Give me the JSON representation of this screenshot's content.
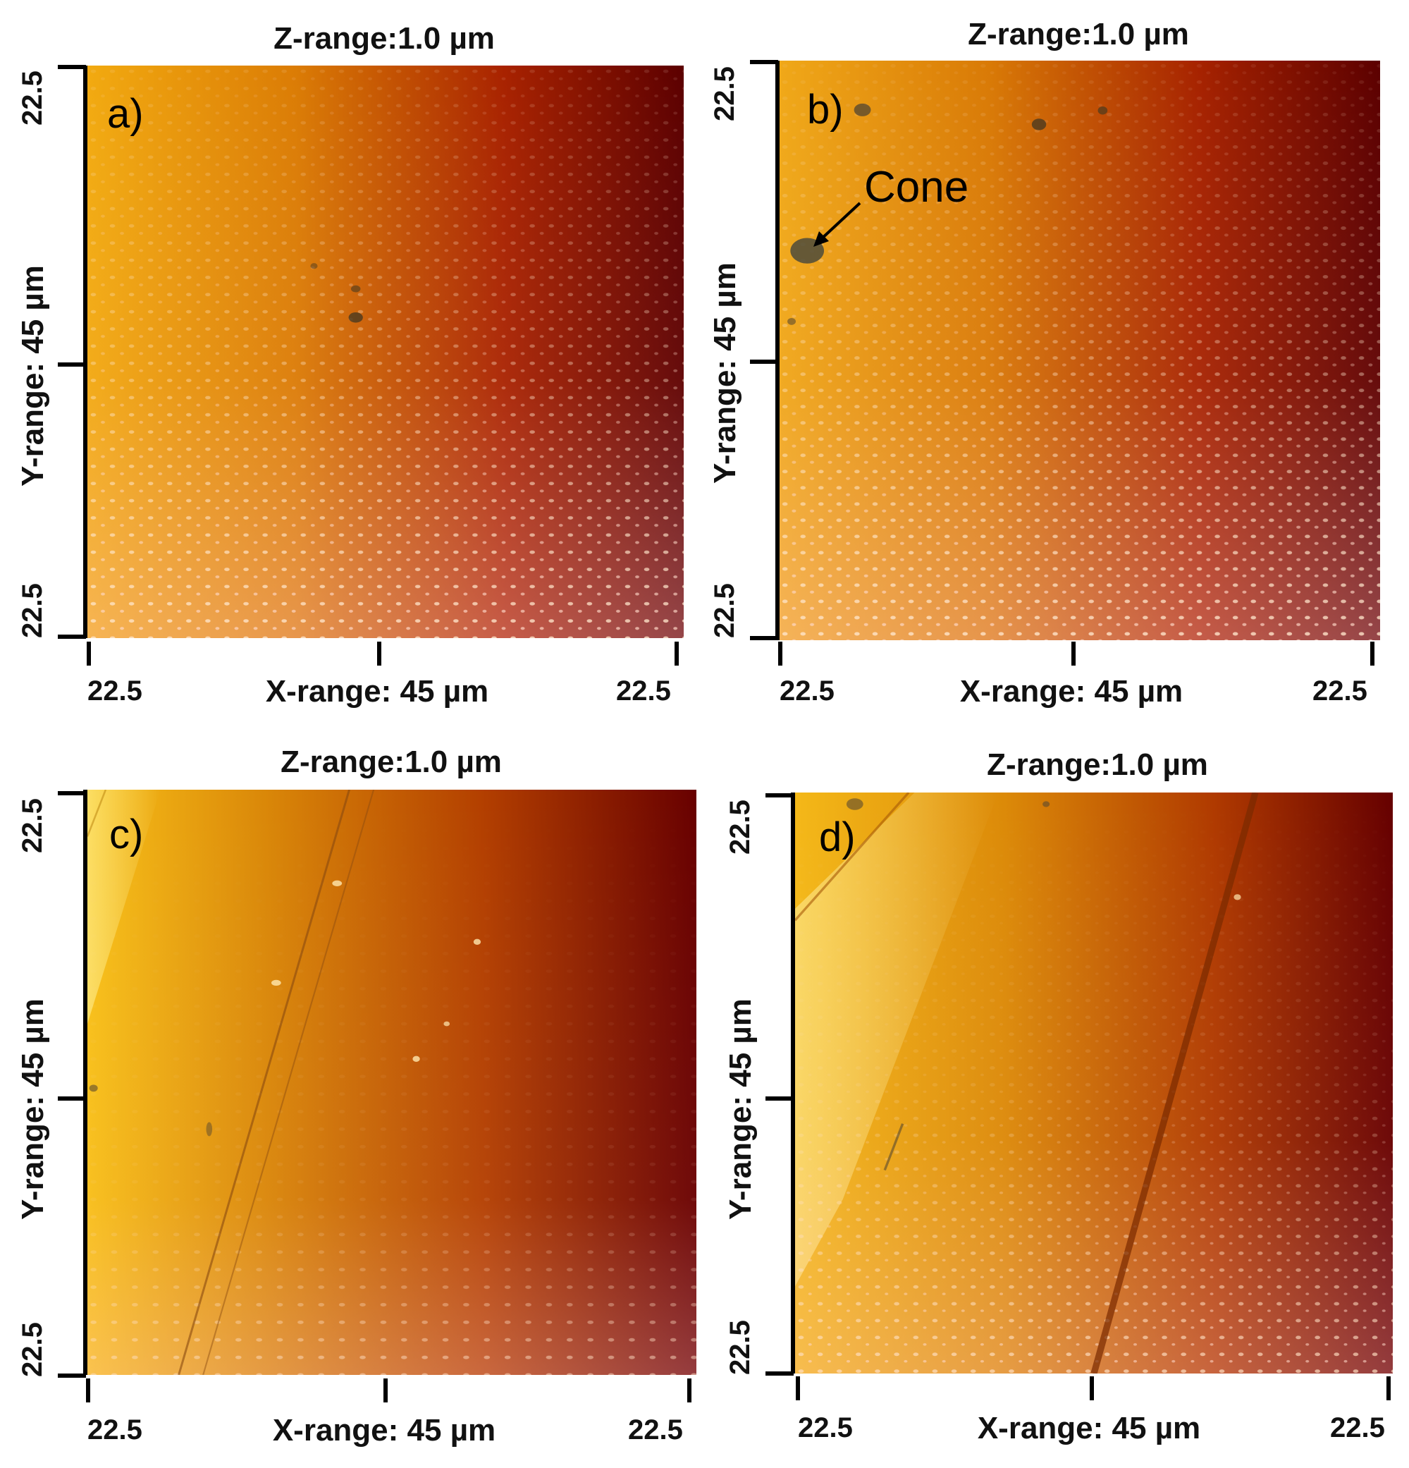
{
  "panels": [
    {
      "letter": "a)",
      "z_label": "Z-range:1.0 µm",
      "x_label": "X-range: 45 µm",
      "y_label": "Y-range: 45 µm",
      "x_tick_left": "22.5",
      "x_tick_right": "22.5",
      "y_tick_top": "22.5",
      "y_tick_bottom": "22.5"
    },
    {
      "letter": "b)",
      "z_label": "Z-range:1.0 µm",
      "x_label": "X-range: 45 µm",
      "y_label": "Y-range: 45 µm",
      "x_tick_left": "22.5",
      "x_tick_right": "22.5",
      "y_tick_top": "22.5",
      "y_tick_bottom": "22.5",
      "annotation": "Cone"
    },
    {
      "letter": "c)",
      "z_label": "Z-range:1.0 µm",
      "x_label": "X-range: 45 µm",
      "y_label": "Y-range: 45 µm",
      "x_tick_left": "22.5",
      "x_tick_right": "22.5",
      "y_tick_top": "22.5",
      "y_tick_bottom": "22.5"
    },
    {
      "letter": "d)",
      "z_label": "Z-range:1.0 µm",
      "x_label": "X-range: 45 µm",
      "y_label": "Y-range: 45 µm",
      "x_tick_left": "22.5",
      "x_tick_right": "22.5",
      "y_tick_top": "22.5",
      "y_tick_bottom": "22.5"
    }
  ],
  "colors": {
    "height_high": "#f7c000",
    "height_mid": "#c35a00",
    "height_low": "#6e0000",
    "highlight": "#ffe3c4",
    "defect": "#4a4a35"
  }
}
